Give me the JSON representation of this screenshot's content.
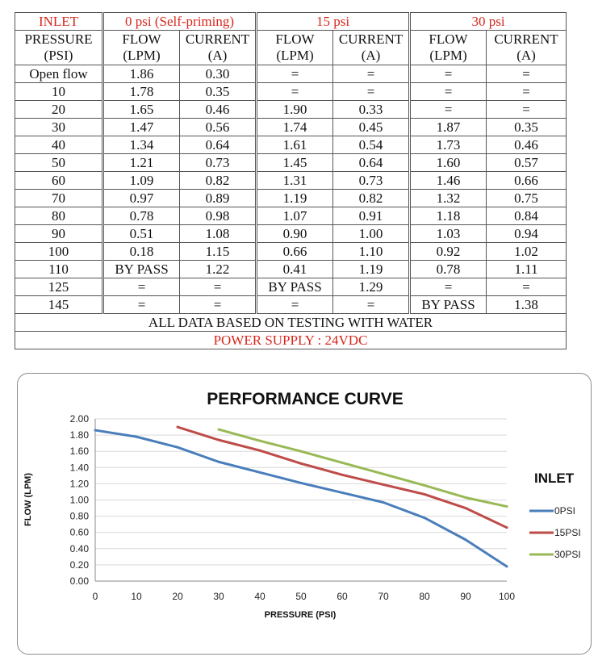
{
  "table": {
    "groups": [
      {
        "label": "INLET",
        "color": "red"
      },
      {
        "label": "0 psi (Self-priming)",
        "color": "red"
      },
      {
        "label": "15 psi",
        "color": "red"
      },
      {
        "label": "30 psi",
        "color": "red"
      }
    ],
    "headers": [
      {
        "line1": "PRESSURE",
        "line2": "(PSI)"
      },
      {
        "line1": "FLOW",
        "line2": "(LPM)"
      },
      {
        "line1": "CURRENT",
        "line2": "(A)"
      },
      {
        "line1": "FLOW",
        "line2": "(LPM)"
      },
      {
        "line1": "CURRENT",
        "line2": "(A)"
      },
      {
        "line1": "FLOW",
        "line2": "(LPM)"
      },
      {
        "line1": "CURRENT",
        "line2": "(A)"
      }
    ],
    "rows": [
      [
        "Open flow",
        "1.86",
        "0.30",
        "=",
        "=",
        "=",
        "="
      ],
      [
        "10",
        "1.78",
        "0.35",
        "=",
        "=",
        "=",
        "="
      ],
      [
        "20",
        "1.65",
        "0.46",
        "1.90",
        "0.33",
        "=",
        "="
      ],
      [
        "30",
        "1.47",
        "0.56",
        "1.74",
        "0.45",
        "1.87",
        "0.35"
      ],
      [
        "40",
        "1.34",
        "0.64",
        "1.61",
        "0.54",
        "1.73",
        "0.46"
      ],
      [
        "50",
        "1.21",
        "0.73",
        "1.45",
        "0.64",
        "1.60",
        "0.57"
      ],
      [
        "60",
        "1.09",
        "0.82",
        "1.31",
        "0.73",
        "1.46",
        "0.66"
      ],
      [
        "70",
        "0.97",
        "0.89",
        "1.19",
        "0.82",
        "1.32",
        "0.75"
      ],
      [
        "80",
        "0.78",
        "0.98",
        "1.07",
        "0.91",
        "1.18",
        "0.84"
      ],
      [
        "90",
        "0.51",
        "1.08",
        "0.90",
        "1.00",
        "1.03",
        "0.94"
      ],
      [
        "100",
        "0.18",
        "1.15",
        "0.66",
        "1.10",
        "0.92",
        "1.02"
      ],
      [
        "110",
        "BY PASS",
        "1.22",
        "0.41",
        "1.19",
        "0.78",
        "1.11"
      ],
      [
        "125",
        "=",
        "=",
        "BY PASS",
        "1.29",
        "=",
        "="
      ],
      [
        "145",
        "=",
        "=",
        "=",
        "=",
        "BY PASS",
        "1.38"
      ]
    ],
    "footer_note": "ALL DATA BASED ON TESTING WITH WATER",
    "power_supply": "POWER SUPPLY : 24VDC"
  },
  "colors": {
    "red_text": "#d8271c",
    "line_0psi": "#4a7ebb",
    "line_15psi": "#be4b48",
    "line_30psi": "#98b954",
    "grid": "#d9d9d9"
  },
  "chart_data": {
    "type": "line",
    "title": "PERFORMANCE CURVE",
    "xlabel": "PRESSURE (PSI)",
    "ylabel": "FLOW (LPM)",
    "x_ticks": [
      "0",
      "10",
      "20",
      "30",
      "40",
      "50",
      "60",
      "70",
      "80",
      "90",
      "100"
    ],
    "y_ticks": [
      "0.00",
      "0.20",
      "0.40",
      "0.60",
      "0.80",
      "1.00",
      "1.20",
      "1.40",
      "1.60",
      "1.80",
      "2.00"
    ],
    "xlim": [
      0,
      100
    ],
    "ylim": [
      0,
      2
    ],
    "grid": "horizontal",
    "legend_title": "INLET",
    "legend_position": "right",
    "series": [
      {
        "name": "0PSI",
        "color": "#4a7ebb",
        "x": [
          0,
          10,
          20,
          30,
          40,
          50,
          60,
          70,
          80,
          90,
          100
        ],
        "y": [
          1.86,
          1.78,
          1.65,
          1.47,
          1.34,
          1.21,
          1.09,
          0.97,
          0.78,
          0.51,
          0.18
        ]
      },
      {
        "name": "15PSI",
        "color": "#be4b48",
        "x": [
          20,
          30,
          40,
          50,
          60,
          70,
          80,
          90,
          100
        ],
        "y": [
          1.9,
          1.74,
          1.61,
          1.45,
          1.31,
          1.19,
          1.07,
          0.9,
          0.66
        ]
      },
      {
        "name": "30PSI",
        "color": "#98b954",
        "x": [
          30,
          40,
          50,
          60,
          70,
          80,
          90,
          100
        ],
        "y": [
          1.87,
          1.73,
          1.6,
          1.46,
          1.32,
          1.18,
          1.03,
          0.92
        ]
      }
    ]
  }
}
